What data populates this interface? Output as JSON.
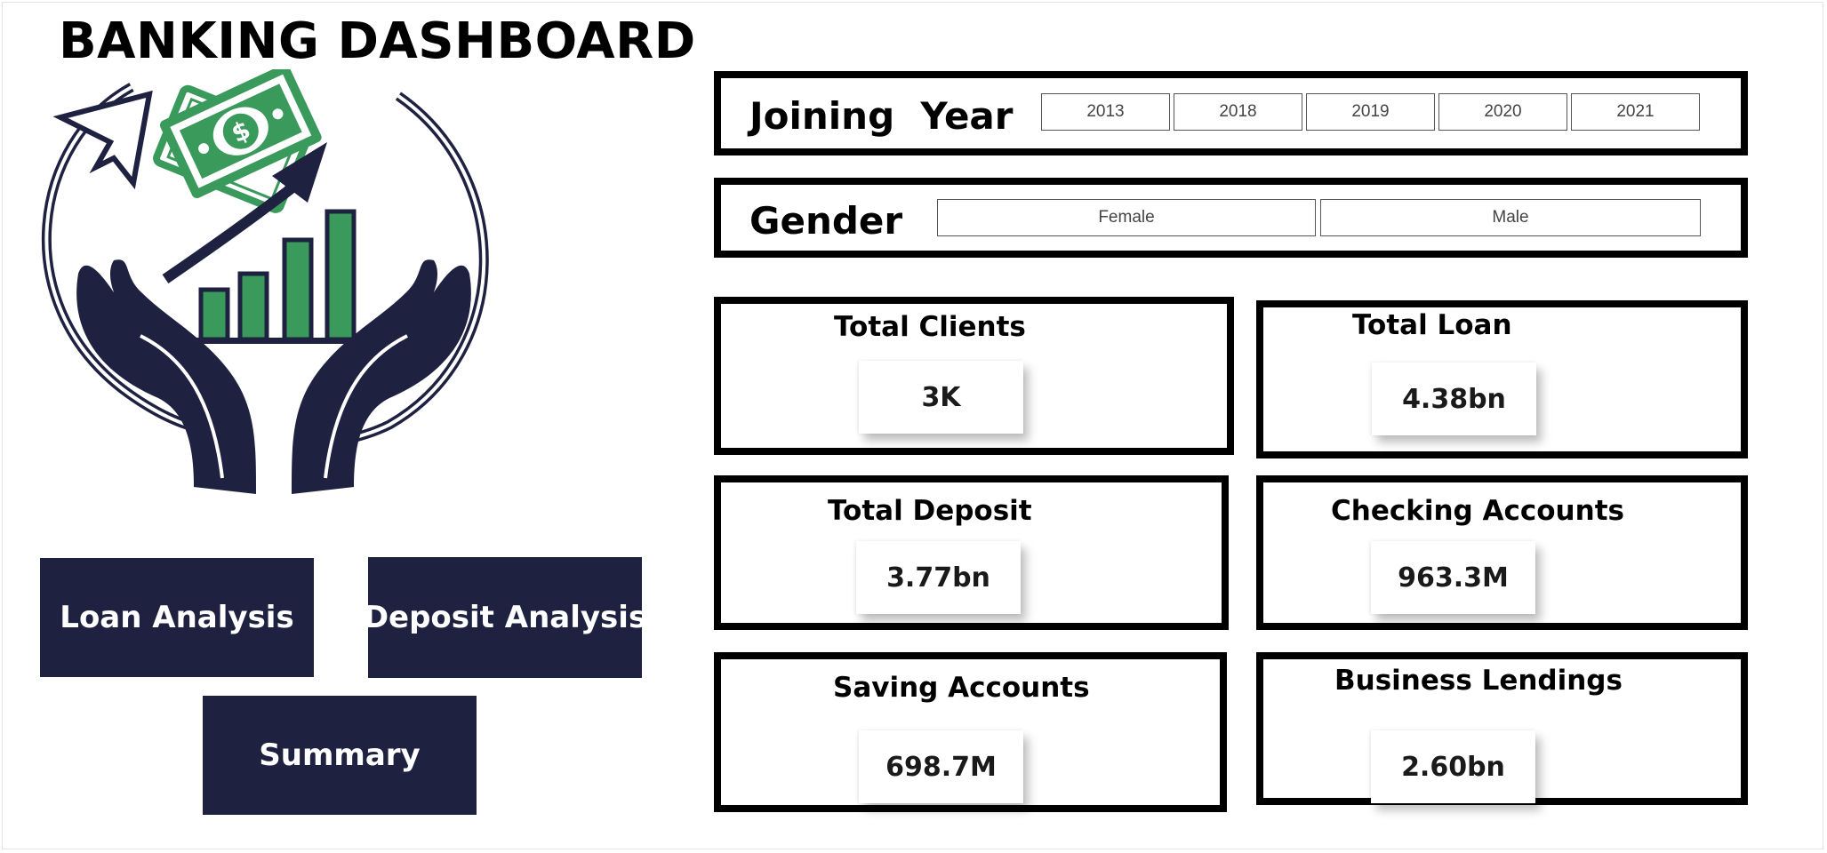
{
  "header": {
    "title": "BANKING DASHBOARD"
  },
  "logo": {
    "icon": "money-growth-hands-icon"
  },
  "nav": {
    "loan_label": "Loan Analysis",
    "deposit_label": "Deposit Analysis",
    "summary_label": "Summary"
  },
  "filters": {
    "joining_year": {
      "label": "Joining  Year",
      "options": [
        "2013",
        "2018",
        "2019",
        "2020",
        "2021"
      ]
    },
    "gender": {
      "label": "Gender",
      "options": [
        "Female",
        "Male"
      ]
    }
  },
  "kpis": [
    {
      "label": "Total Clients",
      "value": "3K"
    },
    {
      "label": "Total Loan",
      "value": "4.38bn"
    },
    {
      "label": "Total Deposit",
      "value": "3.77bn"
    },
    {
      "label": "Checking Accounts",
      "value": "963.3M"
    },
    {
      "label": "Saving Accounts",
      "value": "698.7M"
    },
    {
      "label": "Business Lendings",
      "value": "2.60bn"
    }
  ],
  "colors": {
    "navy": "#1e2140",
    "green": "#3a9a5b"
  }
}
